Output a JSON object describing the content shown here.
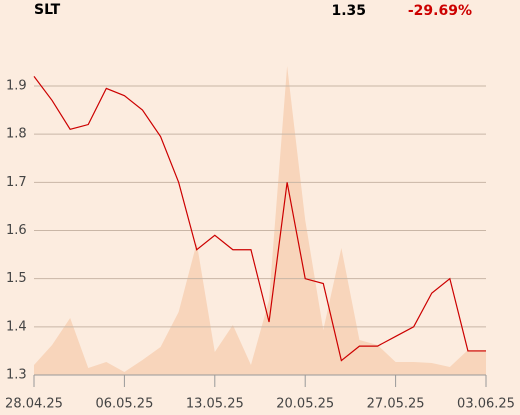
{
  "header": {
    "symbol": "SLT",
    "price": "1.35",
    "change": "-29.69%"
  },
  "chart_data": {
    "type": "line",
    "categories": [
      "28.04.25",
      null,
      null,
      null,
      null,
      "06.05.25",
      null,
      null,
      null,
      null,
      "13.05.25",
      null,
      null,
      null,
      null,
      "20.05.25",
      null,
      null,
      null,
      null,
      "27.05.25",
      null,
      null,
      null,
      null,
      "03.06.25"
    ],
    "series": [
      {
        "color": "#cc0000",
        "values": [
          1.92,
          1.87,
          1.81,
          1.82,
          1.895,
          1.88,
          1.85,
          1.795,
          1.7,
          1.56,
          1.59,
          1.56,
          1.56,
          1.41,
          1.7,
          1.5,
          1.49,
          1.33,
          1.36,
          1.36,
          1.38,
          1.4,
          1.47,
          1.5,
          1.35,
          1.35
        ]
      },
      {
        "color": "#f8d5bb",
        "axis": "volume",
        "values": [
          10,
          30,
          57,
          7,
          13,
          3,
          15,
          28,
          63,
          132,
          23,
          50,
          10,
          75,
          309,
          155,
          45,
          127,
          35,
          30,
          13,
          13,
          12,
          8,
          25,
          25
        ]
      }
    ],
    "ylim": [
      1.3,
      1.9
    ],
    "yticks": [
      1.3,
      1.4,
      1.5,
      1.6,
      1.7,
      1.8,
      1.9
    ],
    "grid": true
  }
}
